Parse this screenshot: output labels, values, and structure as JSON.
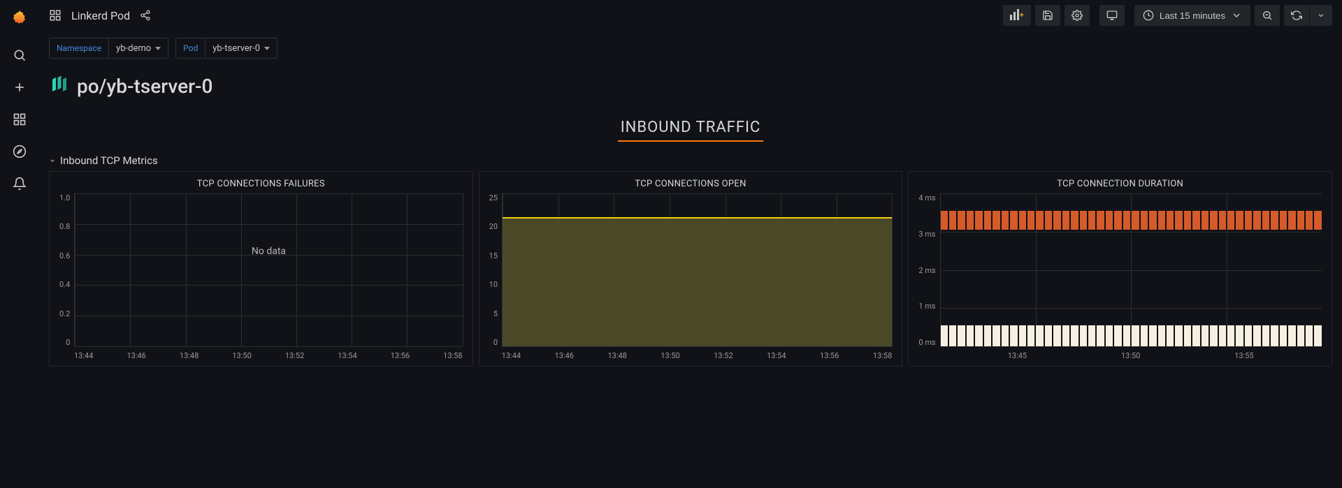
{
  "header": {
    "dashboard_title": "Linkerd Pod",
    "time_range": "Last 15 minutes"
  },
  "variables": {
    "namespace": {
      "label": "Namespace",
      "value": "yb-demo"
    },
    "pod": {
      "label": "Pod",
      "value": "yb-tserver-0"
    }
  },
  "page": {
    "title": "po/yb-tserver-0"
  },
  "section": {
    "inbound_title": "INBOUND TRAFFIC",
    "row_title": "Inbound TCP Metrics"
  },
  "colors": {
    "accent_orange": "#ff780a",
    "link_blue": "#3d8ddb",
    "grid": "#2a2d31",
    "axis_text": "#9a9a9a",
    "area_fill": "#54542c",
    "area_line": "#f2cc0c",
    "bar_orange": "#d55b2a",
    "bar_cream": "#f5f0e1",
    "btn_bg": "#22252a"
  },
  "panels": {
    "failures": {
      "title": "TCP CONNECTIONS FAILURES",
      "type": "line",
      "no_data_text": "No data",
      "ylim": [
        0,
        1.0
      ],
      "yticks": [
        "1.0",
        "0.8",
        "0.6",
        "0.4",
        "0.2",
        "0"
      ],
      "xticks": [
        "13:44",
        "13:46",
        "13:48",
        "13:50",
        "13:52",
        "13:54",
        "13:56",
        "13:58"
      ]
    },
    "open": {
      "title": "TCP CONNECTIONS OPEN",
      "type": "area",
      "ylim": [
        0,
        25
      ],
      "yticks": [
        "25",
        "20",
        "15",
        "10",
        "5",
        "0"
      ],
      "xticks": [
        "13:44",
        "13:46",
        "13:48",
        "13:50",
        "13:52",
        "13:54",
        "13:56",
        "13:58"
      ],
      "value": 21,
      "line_color": "#f2cc0c",
      "fill_color": "#54542c"
    },
    "duration": {
      "title": "TCP CONNECTION DURATION",
      "type": "bar-bands",
      "ylim_ms": [
        0,
        4
      ],
      "yticks": [
        "4 ms",
        "3 ms",
        "2 ms",
        "1 ms",
        "0 ms"
      ],
      "xticks": [
        "13:45",
        "13:50",
        "13:55"
      ],
      "bar_count": 44,
      "top_band": {
        "from_ms": 3.05,
        "to_ms": 3.55,
        "color": "#d55b2a"
      },
      "bottom_band": {
        "from_ms": 0.0,
        "to_ms": 0.55,
        "color": "#f5f0e1"
      }
    }
  }
}
